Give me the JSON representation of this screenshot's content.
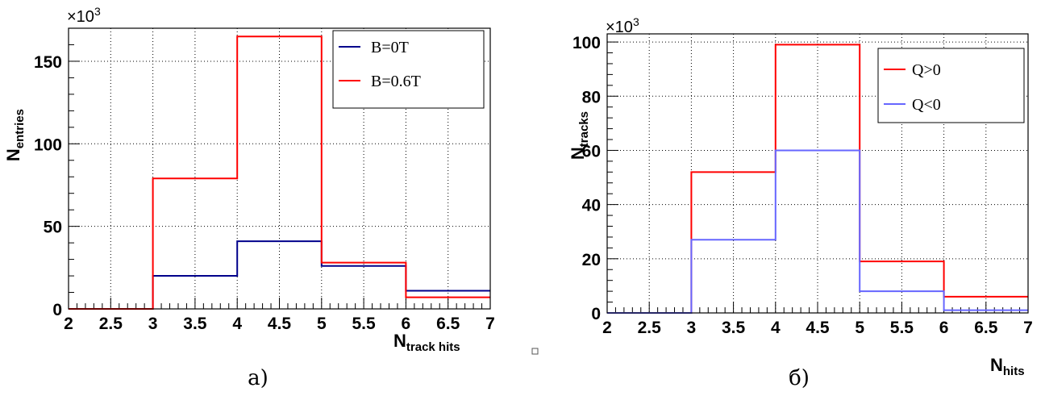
{
  "chart_data": [
    {
      "type": "histogram",
      "panel_label": "а)",
      "multiplier": "×10",
      "multiplier_exp": "3",
      "ylabel": "N",
      "ylabel_sub": "entries",
      "xlabel": "N",
      "xlabel_sub": "track hits",
      "xlim": [
        2,
        7
      ],
      "ylim": [
        0,
        170
      ],
      "x_ticks": [
        "2",
        "2.5",
        "3",
        "3.5",
        "4",
        "4.5",
        "5",
        "5.5",
        "6",
        "6.5",
        "7"
      ],
      "y_ticks": [
        "0",
        "50",
        "100",
        "150"
      ],
      "grid": true,
      "legend_position": "top-right",
      "bin_edges": [
        2,
        3,
        4,
        5,
        6,
        7
      ],
      "series": [
        {
          "name": "B=0T",
          "color": "#00008b",
          "values": [
            0,
            20,
            41,
            26,
            11
          ]
        },
        {
          "name": "B=0.6T",
          "color": "#ff0000",
          "values": [
            0,
            79,
            165,
            28,
            7
          ]
        }
      ]
    },
    {
      "type": "histogram",
      "panel_label": "б)",
      "multiplier": "×10",
      "multiplier_exp": "3",
      "ylabel": "N",
      "ylabel_sub": "tracks",
      "xlabel": "N",
      "xlabel_sub": "hits",
      "xlim": [
        2,
        7
      ],
      "ylim": [
        0,
        103
      ],
      "x_ticks": [
        "2",
        "2.5",
        "3",
        "3.5",
        "4",
        "4.5",
        "5",
        "5.5",
        "6",
        "6.5",
        "7"
      ],
      "y_ticks": [
        "0",
        "20",
        "40",
        "60",
        "80",
        "100"
      ],
      "grid": true,
      "legend_position": "top-right",
      "bin_edges": [
        2,
        3,
        4,
        5,
        6,
        7
      ],
      "series": [
        {
          "name": "Q>0",
          "color": "#ff0000",
          "values": [
            0,
            52,
            99,
            19,
            6
          ]
        },
        {
          "name": "Q<0",
          "color": "#6666ff",
          "values": [
            0,
            27,
            60,
            8,
            1
          ]
        }
      ]
    }
  ]
}
